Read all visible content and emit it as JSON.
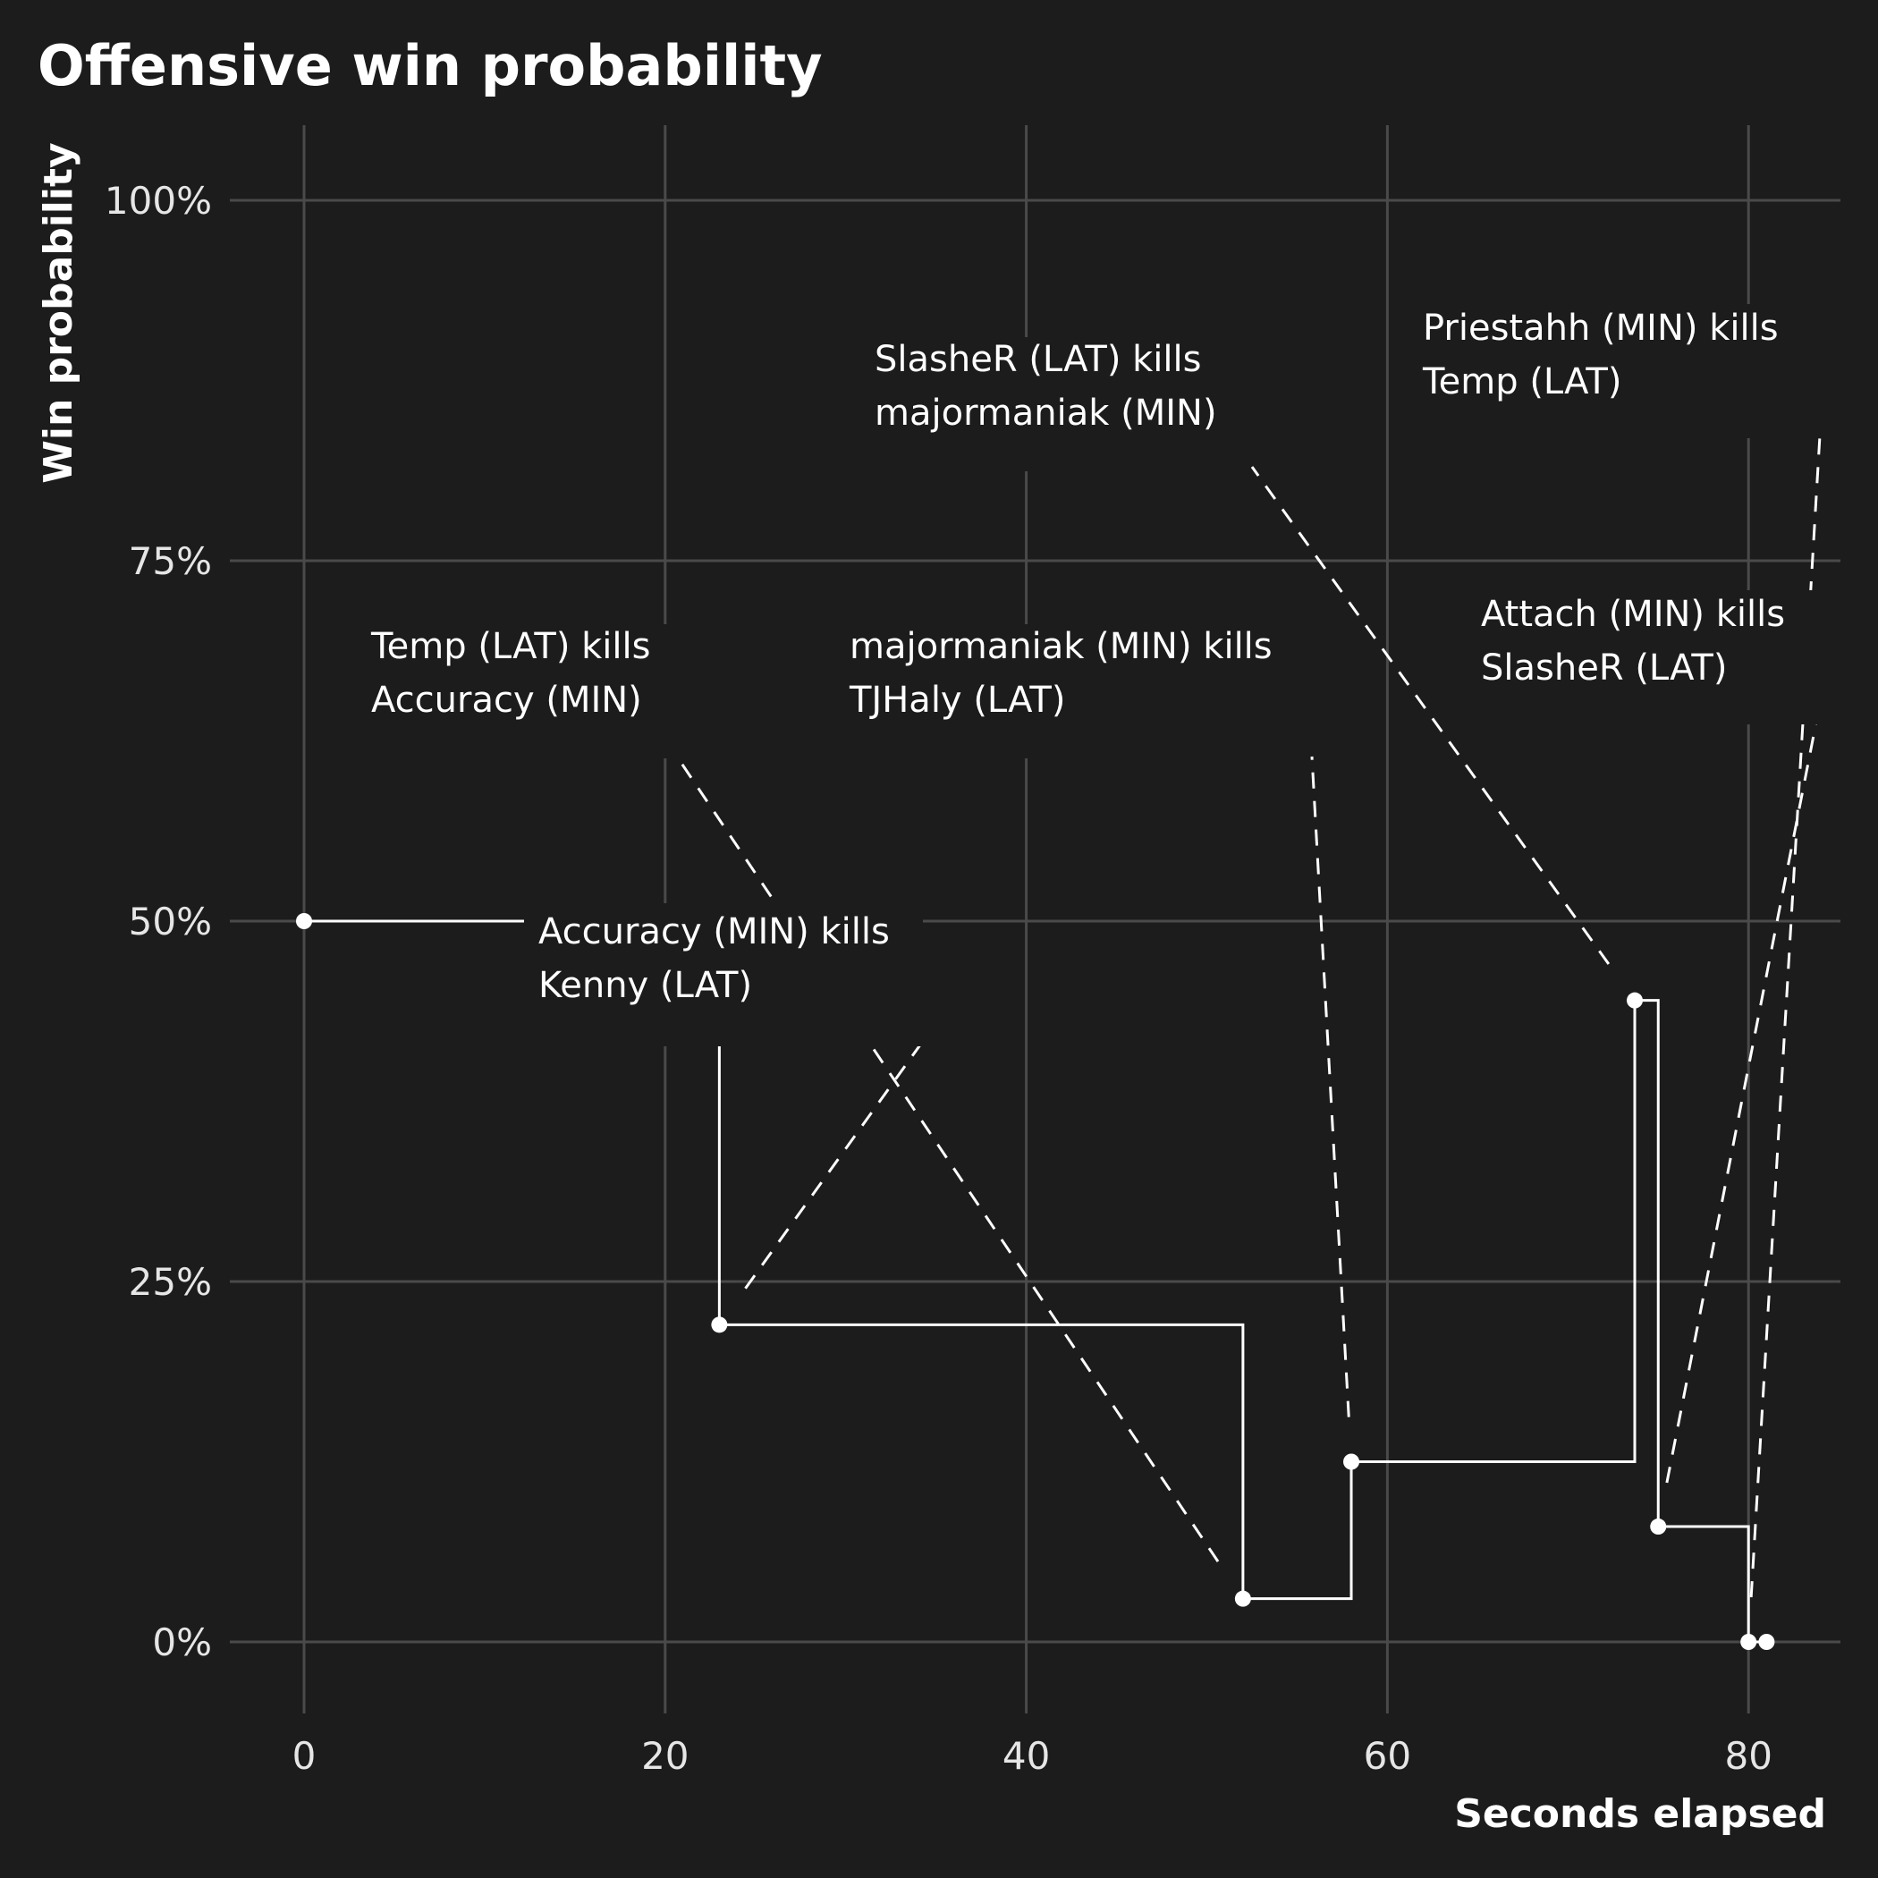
{
  "chart_data": {
    "type": "line",
    "title": "Offensive win probability",
    "xlabel": "Seconds elapsed",
    "ylabel": "Win probability",
    "xlim": [
      -6,
      85
    ],
    "ylim": [
      -0.05,
      1.05
    ],
    "x_ticks": [
      0,
      20,
      40,
      60,
      80
    ],
    "y_ticks": [
      0,
      0.25,
      0.5,
      0.75,
      1.0
    ],
    "x_tick_labels": [
      "0",
      "20",
      "40",
      "60",
      "80"
    ],
    "y_tick_labels": [
      "0%",
      "25%",
      "50%",
      "75%",
      "100%"
    ],
    "grid": true,
    "series": [
      {
        "step": "post",
        "points": [
          {
            "x": 0,
            "y": 0.5
          },
          {
            "x": 23,
            "y": 0.22
          },
          {
            "x": 52,
            "y": 0.03
          },
          {
            "x": 58,
            "y": 0.125
          },
          {
            "x": 73.7,
            "y": 0.445
          },
          {
            "x": 75,
            "y": 0.08
          },
          {
            "x": 80,
            "y": 0.0
          },
          {
            "x": 81,
            "y": 0.0
          }
        ]
      }
    ],
    "annotations": [
      {
        "lines": [
          "Accuracy (MIN) kills",
          "Kenny (LAT)"
        ],
        "point_x": 23,
        "point_y": 0.22
      },
      {
        "lines": [
          "Temp (LAT) kills",
          "Accuracy (MIN)"
        ],
        "point_x": 52,
        "point_y": 0.03
      },
      {
        "lines": [
          "majormaniak (MIN) kills",
          "TJHaly (LAT)"
        ],
        "point_x": 58,
        "point_y": 0.125
      },
      {
        "lines": [
          "SlasheR (LAT) kills",
          "majormaniak (MIN)"
        ],
        "point_x": 73.7,
        "point_y": 0.445
      },
      {
        "lines": [
          "Attach (MIN) kills",
          "SlasheR (LAT)"
        ],
        "point_x": 75,
        "point_y": 0.08
      },
      {
        "lines": [
          "Priestahh (MIN) kills",
          "Temp (LAT)"
        ],
        "point_x": 80,
        "point_y": 0.0
      }
    ]
  }
}
